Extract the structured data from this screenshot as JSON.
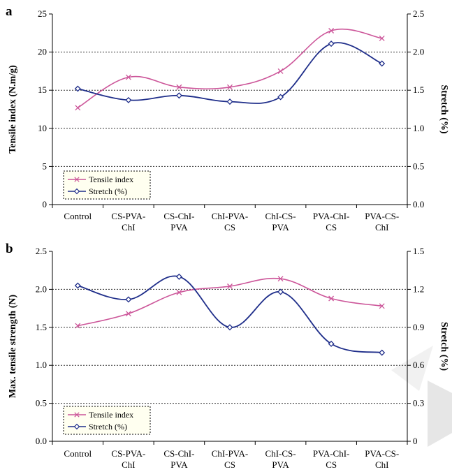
{
  "chart_data": [
    {
      "panel_label": "a",
      "type": "line",
      "categories": [
        [
          "Control"
        ],
        [
          "CS-PVA-",
          "ChI"
        ],
        [
          "CS-ChI-",
          "PVA"
        ],
        [
          "ChI-PVA-",
          "CS"
        ],
        [
          "ChI-CS-",
          "PVA"
        ],
        [
          "PVA-ChI-",
          "CS"
        ],
        [
          "PVA-CS-",
          "ChI"
        ]
      ],
      "ylabel": "Tensile index (N.m/g)",
      "y2label": "Stretch (%)",
      "ylim": [
        0,
        25
      ],
      "y2lim": [
        0,
        2.5
      ],
      "yticks": [
        "0",
        "5",
        "10",
        "15",
        "20",
        "25"
      ],
      "y2ticks": [
        "0.0",
        "0.5",
        "1.0",
        "1.5",
        "2.0",
        "2.5"
      ],
      "grid": true,
      "legend_position": "lower-left",
      "series": [
        {
          "name": "Tensile index",
          "axis": "left",
          "color": "#cc5599",
          "marker": "x",
          "values": [
            12.7,
            16.7,
            15.4,
            15.4,
            17.5,
            22.8,
            21.8
          ]
        },
        {
          "name": "Stretch (%)",
          "axis": "right",
          "color": "#1f2e8a",
          "marker": "diamond",
          "values": [
            1.52,
            1.37,
            1.43,
            1.35,
            1.41,
            2.11,
            1.85
          ]
        }
      ]
    },
    {
      "panel_label": "b",
      "type": "line",
      "categories": [
        [
          "Control"
        ],
        [
          "CS-PVA-",
          "ChI"
        ],
        [
          "CS-ChI-",
          "PVA"
        ],
        [
          "ChI-PVA-",
          "CS"
        ],
        [
          "ChI-CS-",
          "PVA"
        ],
        [
          "PVA-ChI-",
          "CS"
        ],
        [
          "PVA-CS-",
          "ChI"
        ]
      ],
      "ylabel": "Max. tensile strength (N)",
      "y2label": "Stretch (%)",
      "ylim": [
        0,
        2.5
      ],
      "y2lim": [
        0,
        1.5
      ],
      "yticks": [
        "0.0",
        "0.5",
        "1.0",
        "1.5",
        "2.0",
        "2.5"
      ],
      "y2ticks": [
        "0",
        "0.3",
        "0.6",
        "0.9",
        "1.2",
        "1.5"
      ],
      "grid": true,
      "legend_position": "lower-left",
      "series": [
        {
          "name": "Tensile index",
          "axis": "left",
          "color": "#cc5599",
          "marker": "x",
          "values": [
            1.52,
            1.68,
            1.96,
            2.04,
            2.14,
            1.88,
            1.78
          ]
        },
        {
          "name": "Stretch (%)",
          "axis": "right",
          "color": "#1f2e8a",
          "marker": "diamond",
          "values": [
            1.23,
            1.12,
            1.3,
            0.9,
            1.18,
            0.77,
            0.7
          ]
        }
      ]
    }
  ]
}
